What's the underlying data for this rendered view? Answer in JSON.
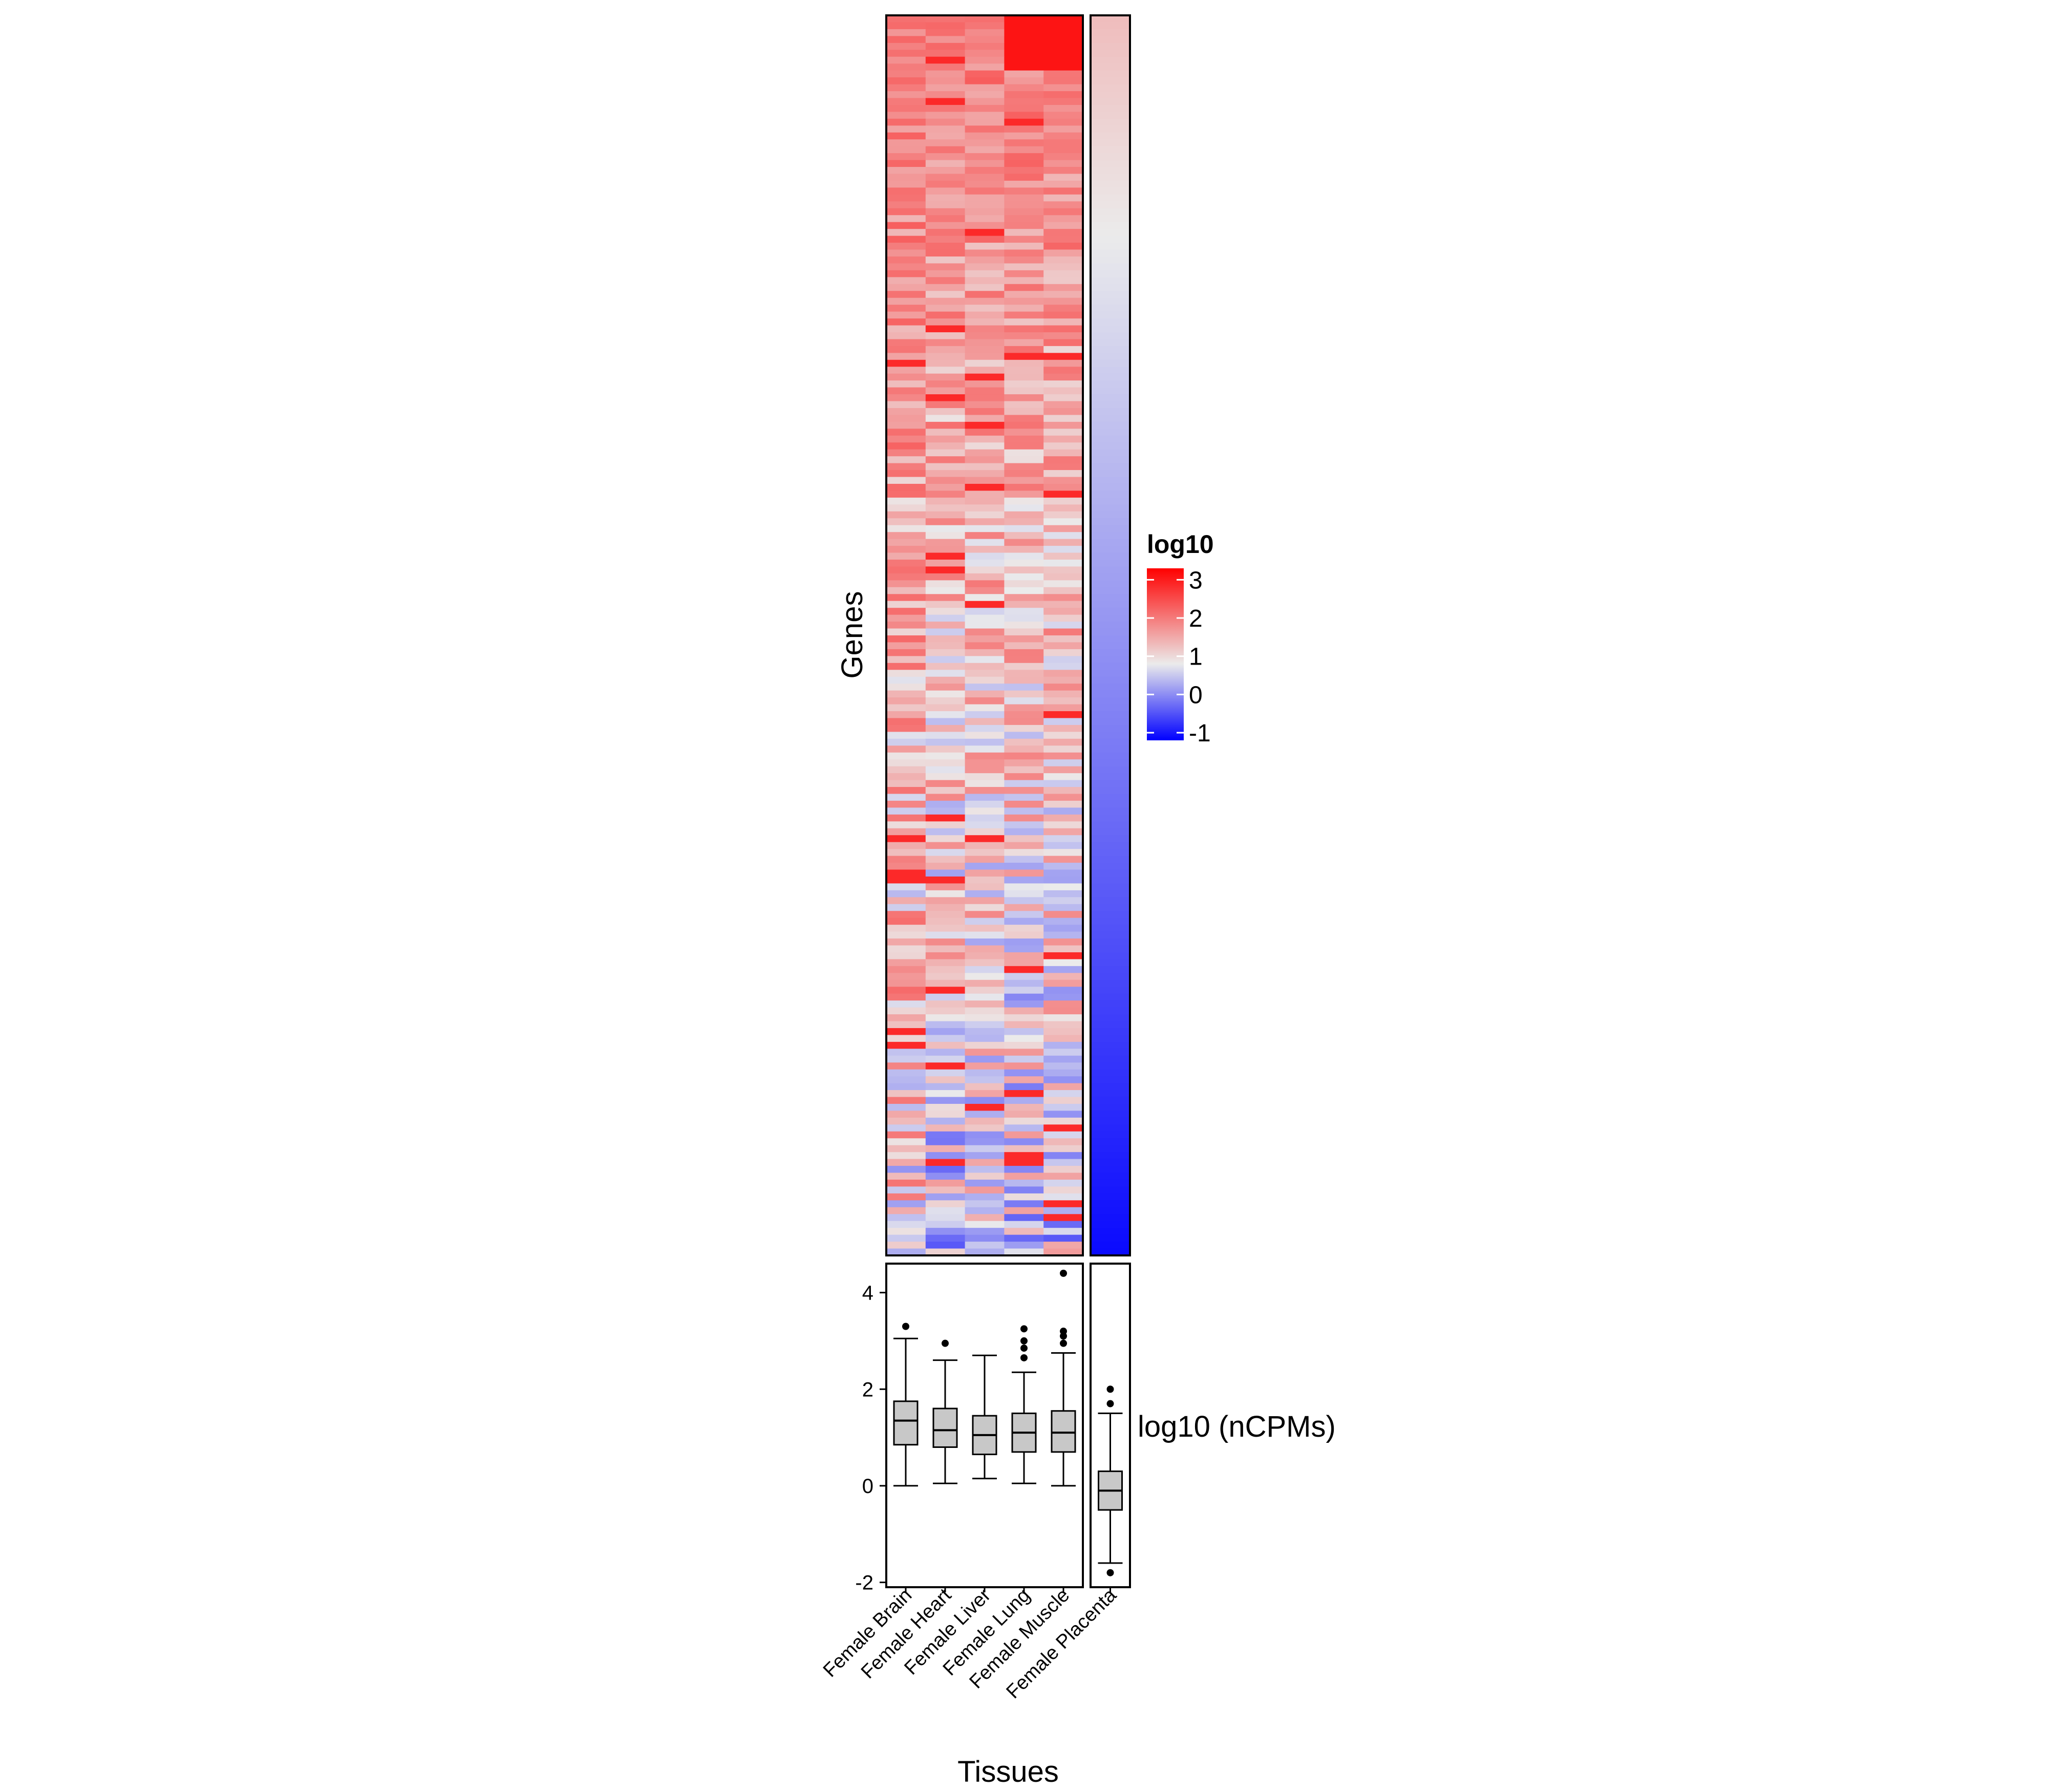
{
  "chart_data": [
    {
      "type": "heatmap",
      "row_axis_label": "Genes",
      "columns": [
        "Female Brain",
        "Female Heart",
        "Female Liver",
        "Female Lung",
        "Female Muscle",
        "Female Placenta"
      ],
      "row_count": 180,
      "sorted_by": "Female Placenta (descending)",
      "value_range": [
        -1.2,
        3.3
      ],
      "legend": {
        "title": "log10",
        "ticks": [
          3,
          2,
          1,
          0,
          -1
        ],
        "tick_labels": [
          "3",
          "2",
          "1",
          "0",
          "-1"
        ],
        "colors": {
          "low": "#0000ff",
          "mid": "#ebebeb",
          "high": "#ff0000"
        },
        "midpoint": 1
      }
    },
    {
      "type": "boxplot",
      "xlabel": "Tissues",
      "ylabel": "log10 (nCPMs)",
      "ylim": [
        -2.1,
        4.6
      ],
      "yticks": [
        -2,
        0,
        2,
        4
      ],
      "ytick_labels": [
        "-2",
        "0",
        "2",
        "4"
      ],
      "box_fill": "#c8c8c8",
      "groups": [
        {
          "name": "Female Brain",
          "min": 0.0,
          "q1": 0.85,
          "median": 1.35,
          "q3": 1.75,
          "max": 3.05,
          "outliers": [
            3.3
          ]
        },
        {
          "name": "Female Heart",
          "min": 0.05,
          "q1": 0.8,
          "median": 1.15,
          "q3": 1.6,
          "max": 2.6,
          "outliers": [
            2.95
          ]
        },
        {
          "name": "Female Liver",
          "min": 0.15,
          "q1": 0.65,
          "median": 1.05,
          "q3": 1.45,
          "max": 2.7,
          "outliers": []
        },
        {
          "name": "Female Lung",
          "min": 0.05,
          "q1": 0.7,
          "median": 1.1,
          "q3": 1.5,
          "max": 2.35,
          "outliers": [
            2.65,
            2.85,
            3.0,
            3.25
          ]
        },
        {
          "name": "Female Muscle",
          "min": 0.0,
          "q1": 0.7,
          "median": 1.1,
          "q3": 1.55,
          "max": 2.75,
          "outliers": [
            2.95,
            3.1,
            3.2,
            4.4
          ]
        },
        {
          "name": "Female Placenta",
          "min": -1.6,
          "q1": -0.5,
          "median": -0.1,
          "q3": 0.3,
          "max": 1.5,
          "outliers": [
            1.7,
            2.0,
            -1.8
          ]
        }
      ]
    }
  ]
}
